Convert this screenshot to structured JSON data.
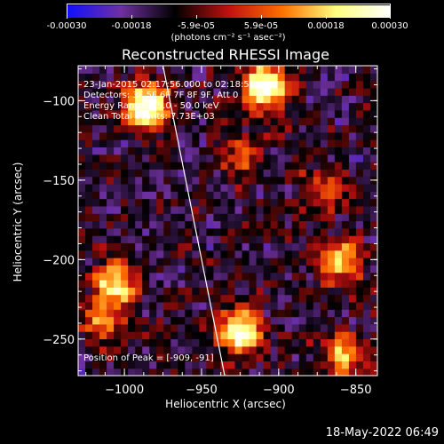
{
  "colorbar": {
    "tick_labels": [
      "-0.00030",
      "-0.00018",
      "-5.9e-05",
      "5.9e-05",
      "0.00018",
      "0.00030"
    ],
    "units": "(photons cm⁻² s⁻¹ asec⁻²)",
    "colormap": [
      "#1010ff",
      "#7030a0",
      "#000000",
      "#c01010",
      "#ff7000",
      "#ffff80",
      "#ffffff"
    ]
  },
  "overlay": {
    "time_range": "23-Jan-2015 02:17:56.000 to 02:18:56.000",
    "detectors": "Detectors: 3F 5F 6F 7F 8F 9F, Att 0",
    "energy": "Energy Range: 25.0 - 50.0 keV",
    "method": "Clean     Total counts: 7.73E+03",
    "peak": "Position of Peak = [-909, -91]"
  },
  "footer": {
    "date": "18-May-2022 06:49"
  },
  "chart_data": {
    "type": "heatmap",
    "title": "Reconstructed RHESSI Image",
    "xlabel": "Heliocentric X (arcsec)",
    "ylabel": "Heliocentric Y (arcsec)",
    "xlim": [
      -1030,
      -836
    ],
    "ylim": [
      -273,
      -78
    ],
    "xticks": [
      -1000,
      -950,
      -900,
      -850
    ],
    "yticks": [
      -100,
      -150,
      -200,
      -250
    ],
    "xtick_labels": [
      "−1000",
      "−950",
      "−900",
      "−850"
    ],
    "ytick_labels": [
      "−100",
      "−150",
      "−200",
      "−250"
    ],
    "zlim": [
      -0.0003,
      0.0003
    ],
    "limb_line": [
      [
        -975,
        -78
      ],
      [
        -935,
        -273
      ]
    ],
    "blobs": [
      {
        "x": -985,
        "y": -102,
        "intensity": 0.0003
      },
      {
        "x": -909,
        "y": -91,
        "intensity": 0.0003
      },
      {
        "x": -1005,
        "y": -215,
        "intensity": 0.00024
      },
      {
        "x": -1015,
        "y": -240,
        "intensity": 0.00016
      },
      {
        "x": -925,
        "y": -245,
        "intensity": 0.00026
      },
      {
        "x": -860,
        "y": -200,
        "intensity": 0.00018
      },
      {
        "x": -870,
        "y": -155,
        "intensity": 0.00012
      },
      {
        "x": -925,
        "y": -135,
        "intensity": 0.00012
      },
      {
        "x": -858,
        "y": -260,
        "intensity": 0.00016
      }
    ]
  }
}
